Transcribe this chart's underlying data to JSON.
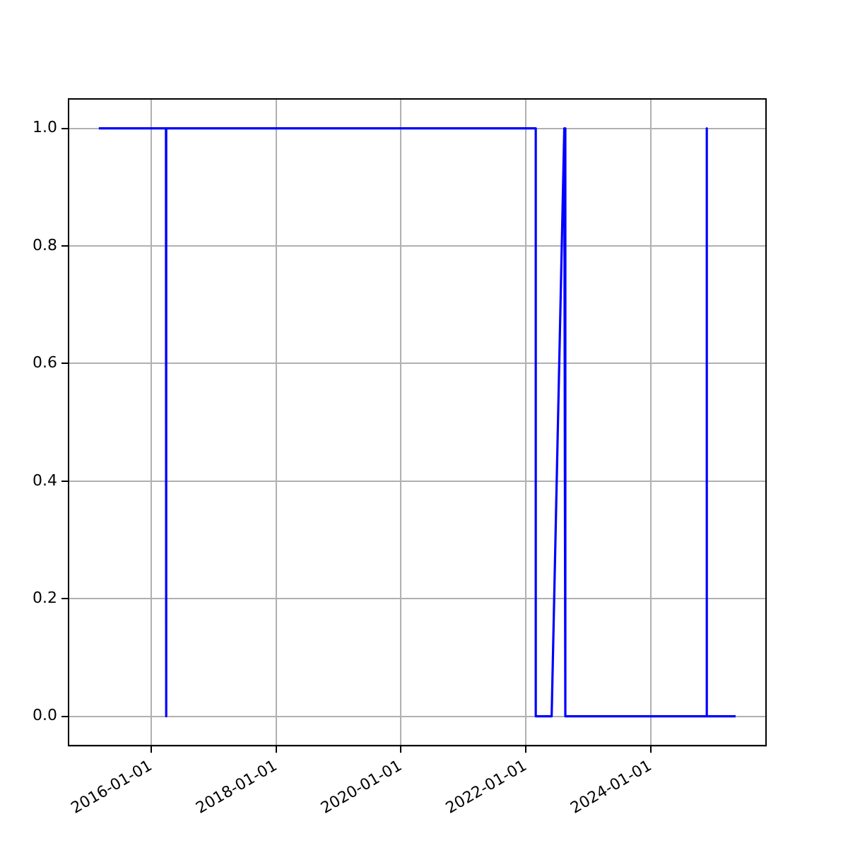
{
  "chart_data": {
    "type": "line",
    "x": [
      "2015-03-01",
      "2016-03-28",
      "2016-03-28",
      "2016-03-30",
      "2016-03-30",
      "2022-02-28",
      "2022-02-28",
      "2022-06-01",
      "2022-08-14",
      "2022-08-20",
      "2024-11-24",
      "2024-11-24",
      "2024-11-25",
      "2025-05-12"
    ],
    "series": [
      {
        "color": "#0000ff",
        "values": [
          1,
          1,
          0,
          0,
          1,
          1,
          0,
          0,
          1,
          0,
          0,
          1,
          0,
          0
        ]
      }
    ],
    "xlim": [
      "2014-09-05",
      "2025-11-06"
    ],
    "xticks": [
      "2016-01-01",
      "2018-01-01",
      "2020-01-01",
      "2022-01-01",
      "2024-01-01"
    ],
    "ylim": [
      -0.05,
      1.05
    ],
    "yticks": [
      {
        "value": 0,
        "label": "0.0"
      },
      {
        "value": 0.2,
        "label": "0.2"
      },
      {
        "value": 0.4,
        "label": "0.4"
      },
      {
        "value": 0.6,
        "label": "0.6"
      },
      {
        "value": 0.8,
        "label": "0.8"
      },
      {
        "value": 1,
        "label": "1.0"
      }
    ],
    "grid": true,
    "marker": "none",
    "line_style": "solid",
    "legend": false
  }
}
